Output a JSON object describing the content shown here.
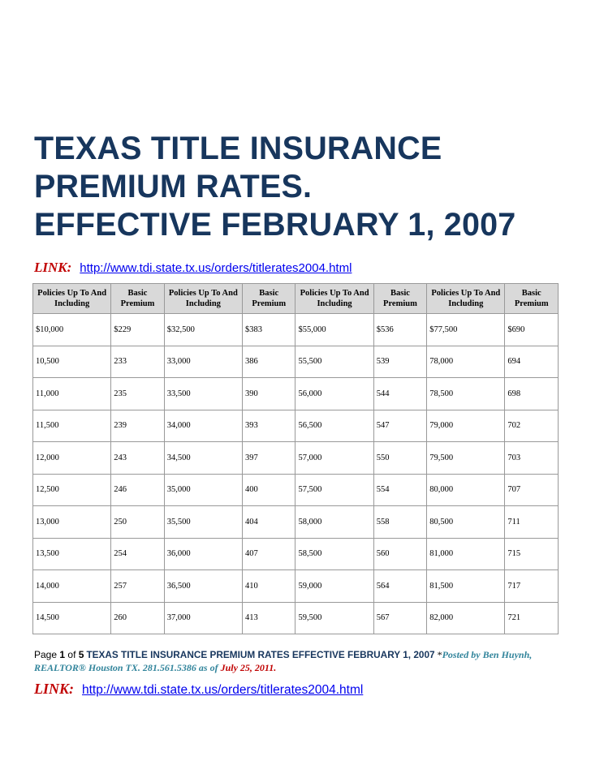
{
  "title_lines": [
    "TEXAS TITLE INSURANCE",
    "PREMIUM RATES.",
    "EFFECTIVE FEBRUARY 1, 2007"
  ],
  "link_top": {
    "label": "LINK:",
    "url": "http://www.tdi.state.tx.us/orders/titlerates2004.html"
  },
  "table": {
    "headers": [
      "Policies Up To And Including",
      "Basic Premium",
      "Policies Up To And Including",
      "Basic Premium",
      "Policies Up To And Including",
      "Basic Premium",
      "Policies Up To And Including",
      "Basic Premium"
    ],
    "rows": [
      [
        "$10,000",
        "$229",
        "$32,500",
        "$383",
        "$55,000",
        "$536",
        "$77,500",
        "$690"
      ],
      [
        "10,500",
        "233",
        "33,000",
        "386",
        "55,500",
        "539",
        "78,000",
        "694"
      ],
      [
        "11,000",
        "235",
        "33,500",
        "390",
        "56,000",
        "544",
        "78,500",
        "698"
      ],
      [
        "11,500",
        "239",
        "34,000",
        "393",
        "56,500",
        "547",
        "79,000",
        "702"
      ],
      [
        "12,000",
        "243",
        "34,500",
        "397",
        "57,000",
        "550",
        "79,500",
        "703"
      ],
      [
        "12,500",
        "246",
        "35,000",
        "400",
        "57,500",
        "554",
        "80,000",
        "707"
      ],
      [
        "13,000",
        "250",
        "35,500",
        "404",
        "58,000",
        "558",
        "80,500",
        "711"
      ],
      [
        "13,500",
        "254",
        "36,000",
        "407",
        "58,500",
        "560",
        "81,000",
        "715"
      ],
      [
        "14,000",
        "257",
        "36,500",
        "410",
        "59,000",
        "564",
        "81,500",
        "717"
      ],
      [
        "14,500",
        "260",
        "37,000",
        "413",
        "59,500",
        "567",
        "82,000",
        "721"
      ]
    ]
  },
  "footer": {
    "page_word": "Page",
    "page_num": "1",
    "of_word": "of",
    "page_total": "5",
    "doc_title": "TEXAS TITLE INSURANCE PREMIUM RATES EFFECTIVE FEBRUARY 1, 2007",
    "asterisk": "*",
    "byline": "Posted by Ben Huynh, REALTOR® Houston TX. 281.561.5386 as of",
    "date": "July 25, 2011."
  },
  "link_bottom": {
    "label": "LINK:",
    "url": "http://www.tdi.state.tx.us/orders/titlerates2004.html"
  }
}
